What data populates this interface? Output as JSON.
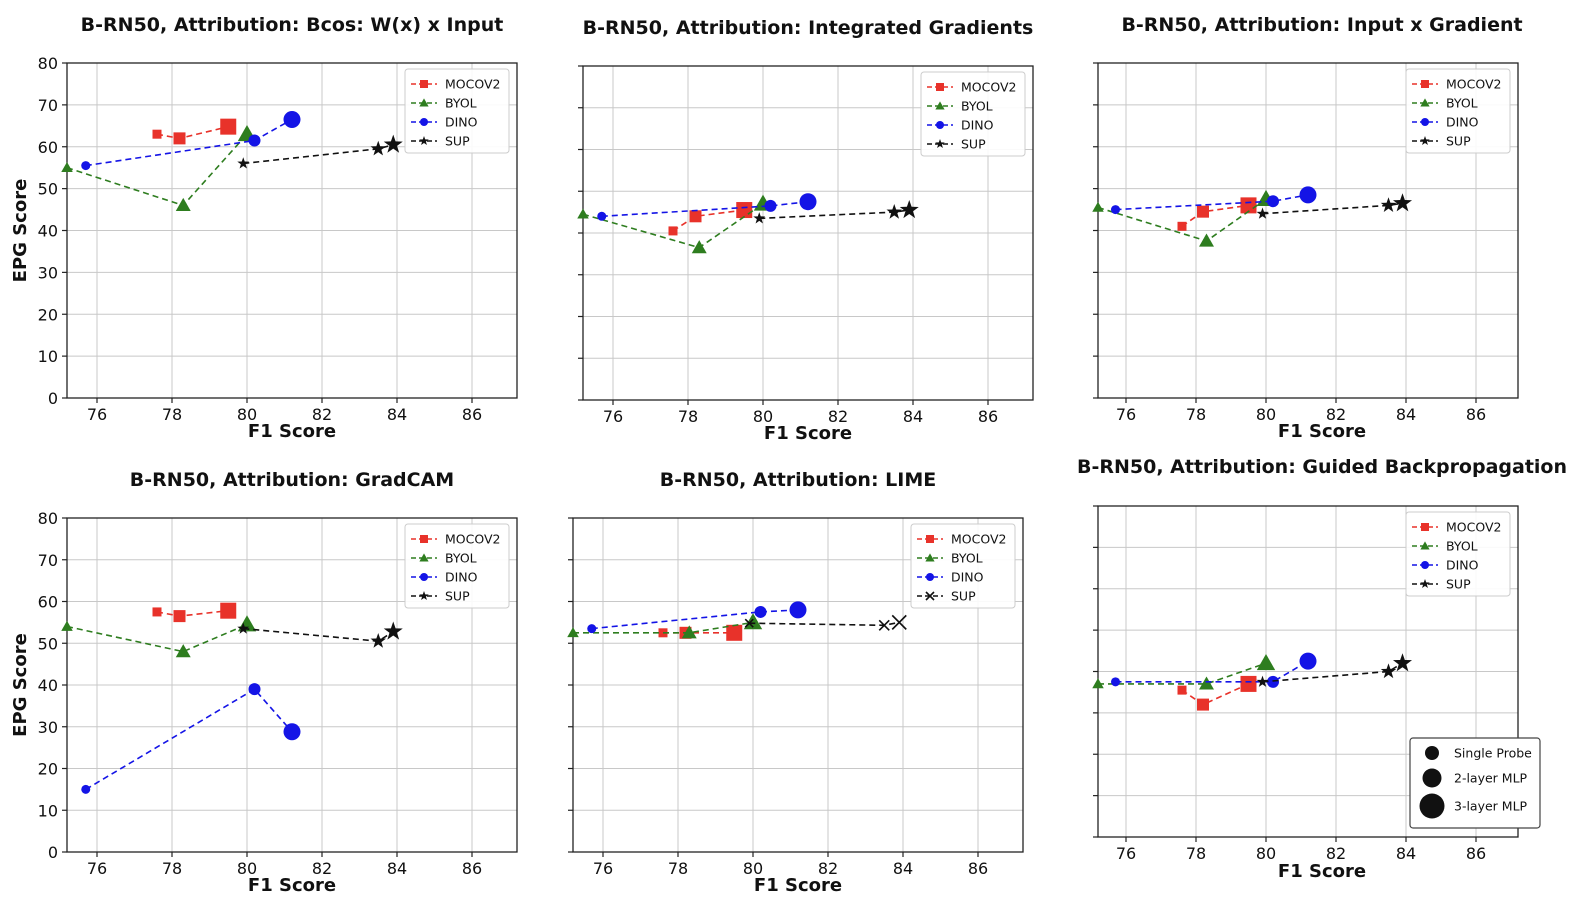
{
  "colors": {
    "MOCOV2": "#e8322a",
    "BYOL": "#2e7d1f",
    "DINO": "#1414e6",
    "SUP": "#111111"
  },
  "chart_data": [
    {
      "type": "line",
      "title": "B-RN50, Attribution: Bcos: W(x) x Input",
      "xlabel": "F1 Score",
      "ylabel": "EPG Score",
      "xlim": [
        75.2,
        87.2
      ],
      "ylim": [
        0,
        80
      ],
      "xticks": [
        "76",
        "78",
        "80",
        "82",
        "84",
        "86"
      ],
      "yticks": [
        "0",
        "10",
        "20",
        "30",
        "40",
        "50",
        "60",
        "70",
        "80"
      ],
      "grid": true,
      "legend": "top-right",
      "series": [
        {
          "name": "MOCOV2",
          "marker": "square",
          "x": [
            77.6,
            78.2,
            79.5
          ],
          "y": [
            63.0,
            62.0,
            64.8
          ]
        },
        {
          "name": "BYOL",
          "marker": "triangle",
          "x": [
            75.2,
            78.3,
            80.0
          ],
          "y": [
            55.0,
            46.0,
            63.0
          ]
        },
        {
          "name": "DINO",
          "marker": "circle",
          "x": [
            75.7,
            80.2,
            81.2
          ],
          "y": [
            55.5,
            61.5,
            66.5
          ]
        },
        {
          "name": "SUP",
          "marker": "star",
          "x": [
            79.9,
            83.5,
            83.9
          ],
          "y": [
            56.0,
            59.5,
            60.5
          ]
        }
      ]
    },
    {
      "type": "line",
      "title": "B-RN50, Attribution: Integrated Gradients",
      "xlabel": "F1 Score",
      "ylabel": "",
      "xlim": [
        75.2,
        87.2
      ],
      "ylim": [
        0,
        80
      ],
      "xticks": [
        "76",
        "78",
        "80",
        "82",
        "84",
        "86"
      ],
      "yticks": [],
      "grid": true,
      "legend": "top-right",
      "series": [
        {
          "name": "MOCOV2",
          "marker": "square",
          "x": [
            77.6,
            78.2,
            79.5
          ],
          "y": [
            40.5,
            44.0,
            45.5
          ]
        },
        {
          "name": "BYOL",
          "marker": "triangle",
          "x": [
            75.2,
            78.3,
            80.0
          ],
          "y": [
            44.5,
            36.5,
            47.0
          ]
        },
        {
          "name": "DINO",
          "marker": "circle",
          "x": [
            75.7,
            80.2,
            81.2
          ],
          "y": [
            44.0,
            46.5,
            47.5
          ]
        },
        {
          "name": "SUP",
          "marker": "star",
          "x": [
            79.9,
            83.5,
            83.9
          ],
          "y": [
            43.5,
            45.0,
            45.5
          ]
        }
      ]
    },
    {
      "type": "line",
      "title": "B-RN50, Attribution: Input x Gradient",
      "xlabel": "F1 Score",
      "ylabel": "",
      "xlim": [
        75.2,
        87.2
      ],
      "ylim": [
        0,
        80
      ],
      "xticks": [
        "76",
        "78",
        "80",
        "82",
        "84",
        "86"
      ],
      "yticks": [],
      "grid": true,
      "legend": "top-right",
      "series": [
        {
          "name": "MOCOV2",
          "marker": "square",
          "x": [
            77.6,
            78.2,
            79.5
          ],
          "y": [
            41.0,
            44.5,
            46.0
          ]
        },
        {
          "name": "BYOL",
          "marker": "triangle",
          "x": [
            75.2,
            78.3,
            80.0
          ],
          "y": [
            45.5,
            37.5,
            47.5
          ]
        },
        {
          "name": "DINO",
          "marker": "circle",
          "x": [
            75.7,
            80.2,
            81.2
          ],
          "y": [
            45.0,
            47.0,
            48.5
          ]
        },
        {
          "name": "SUP",
          "marker": "star",
          "x": [
            79.9,
            83.5,
            83.9
          ],
          "y": [
            44.0,
            46.0,
            46.5
          ]
        }
      ]
    },
    {
      "type": "line",
      "title": "B-RN50, Attribution: GradCAM",
      "xlabel": "F1 Score",
      "ylabel": "EPG Score",
      "xlim": [
        75.2,
        87.2
      ],
      "ylim": [
        0,
        80
      ],
      "xticks": [
        "76",
        "78",
        "80",
        "82",
        "84",
        "86"
      ],
      "yticks": [
        "0",
        "10",
        "20",
        "30",
        "40",
        "50",
        "60",
        "70",
        "80"
      ],
      "grid": true,
      "legend": "top-right",
      "series": [
        {
          "name": "MOCOV2",
          "marker": "square",
          "x": [
            77.6,
            78.2,
            79.5
          ],
          "y": [
            57.5,
            56.5,
            57.8
          ]
        },
        {
          "name": "BYOL",
          "marker": "triangle",
          "x": [
            75.2,
            78.3,
            80.0
          ],
          "y": [
            54.0,
            48.0,
            54.5
          ]
        },
        {
          "name": "DINO",
          "marker": "circle",
          "x": [
            75.7,
            80.2,
            81.2
          ],
          "y": [
            15.0,
            39.0,
            28.8
          ]
        },
        {
          "name": "SUP",
          "marker": "star",
          "x": [
            79.9,
            83.5,
            83.9
          ],
          "y": [
            53.5,
            50.5,
            52.8
          ]
        }
      ]
    },
    {
      "type": "line",
      "title": "B-RN50, Attribution: LIME",
      "xlabel": "F1 Score",
      "ylabel": "",
      "xlim": [
        75.2,
        87.2
      ],
      "ylim": [
        0,
        80
      ],
      "xticks": [
        "76",
        "78",
        "80",
        "82",
        "84",
        "86"
      ],
      "yticks": [],
      "grid": true,
      "legend": "top-right",
      "series": [
        {
          "name": "MOCOV2",
          "marker": "square",
          "x": [
            77.6,
            78.2,
            79.5
          ],
          "y": [
            52.5,
            52.5,
            52.5
          ]
        },
        {
          "name": "BYOL",
          "marker": "triangle",
          "x": [
            75.2,
            78.3,
            80.0
          ],
          "y": [
            52.5,
            52.5,
            55.0
          ]
        },
        {
          "name": "DINO",
          "marker": "circle",
          "x": [
            75.7,
            80.2,
            81.2
          ],
          "y": [
            53.5,
            57.5,
            58.0
          ]
        },
        {
          "name": "SUP",
          "marker": "x",
          "x": [
            79.9,
            83.5,
            83.9
          ],
          "y": [
            54.8,
            54.3,
            55.0
          ]
        }
      ]
    },
    {
      "type": "line",
      "title": "B-RN50, Attribution: Guided Backpropagation",
      "xlabel": "F1 Score",
      "ylabel": "",
      "xlim": [
        75.2,
        87.2
      ],
      "ylim": [
        0,
        80
      ],
      "xticks": [
        "76",
        "78",
        "80",
        "82",
        "84",
        "86"
      ],
      "yticks": [],
      "grid": true,
      "legend": "top-right",
      "size_legend": [
        "Single Probe",
        "2-layer MLP",
        "3-layer MLP"
      ],
      "series": [
        {
          "name": "MOCOV2",
          "marker": "square",
          "x": [
            77.6,
            78.2,
            79.5
          ],
          "y": [
            35.5,
            32.0,
            37.0
          ]
        },
        {
          "name": "BYOL",
          "marker": "triangle",
          "x": [
            75.2,
            78.3,
            80.0
          ],
          "y": [
            37.0,
            37.0,
            42.0
          ]
        },
        {
          "name": "DINO",
          "marker": "circle",
          "x": [
            75.7,
            80.2,
            81.2
          ],
          "y": [
            37.5,
            37.5,
            42.5
          ]
        },
        {
          "name": "SUP",
          "marker": "star",
          "x": [
            79.9,
            83.5,
            83.9
          ],
          "y": [
            37.5,
            40.0,
            42.0
          ]
        }
      ]
    }
  ]
}
